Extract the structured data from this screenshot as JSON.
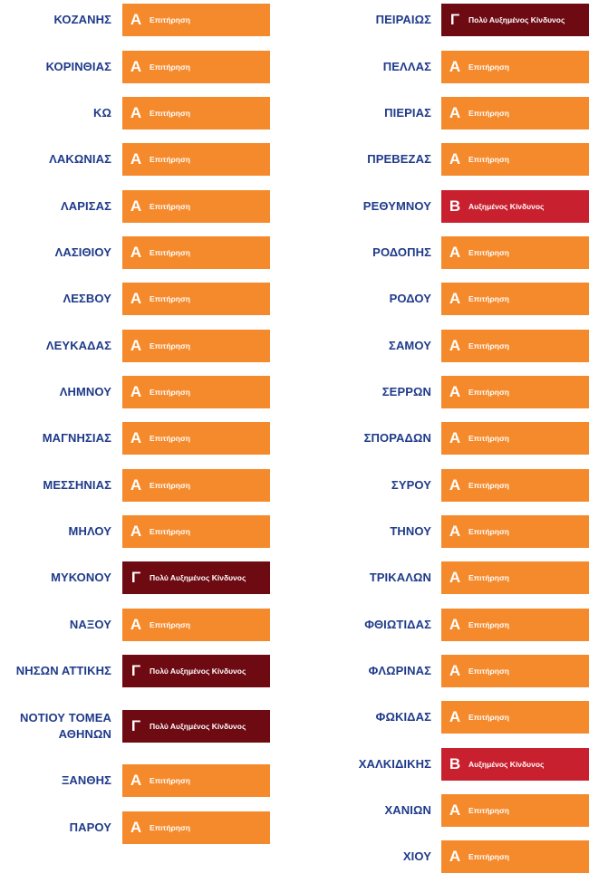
{
  "levels": {
    "A": {
      "letter": "Α",
      "label": "Επιτήρηση",
      "color": "#f58a2c"
    },
    "B": {
      "letter": "Β",
      "label": "Αυξημένος Κίνδυνος",
      "color": "#c9202f"
    },
    "C": {
      "letter": "Γ",
      "label": "Πολύ Αυξημένος Κίνδυνος",
      "color": "#6d0a12"
    }
  },
  "left_column": [
    {
      "name": "ΚΟΖΑΝΗΣ",
      "level": "A"
    },
    {
      "name": "ΚΟΡΙΝΘΙΑΣ",
      "level": "A"
    },
    {
      "name": "ΚΩ",
      "level": "A"
    },
    {
      "name": "ΛΑΚΩΝΙΑΣ",
      "level": "A"
    },
    {
      "name": "ΛΑΡΙΣΑΣ",
      "level": "A"
    },
    {
      "name": "ΛΑΣΙΘΙΟΥ",
      "level": "A"
    },
    {
      "name": "ΛΕΣΒΟΥ",
      "level": "A"
    },
    {
      "name": "ΛΕΥΚΑΔΑΣ",
      "level": "A"
    },
    {
      "name": "ΛΗΜΝΟΥ",
      "level": "A"
    },
    {
      "name": "ΜΑΓΝΗΣΙΑΣ",
      "level": "A"
    },
    {
      "name": "ΜΕΣΣΗΝΙΑΣ",
      "level": "A"
    },
    {
      "name": "ΜΗΛΟΥ",
      "level": "A"
    },
    {
      "name": "ΜΥΚΟΝΟΥ",
      "level": "C"
    },
    {
      "name": "ΝΑΞΟΥ",
      "level": "A"
    },
    {
      "name": "ΝΗΣΩΝ ΑΤΤΙΚΗΣ",
      "level": "C"
    },
    {
      "name": "ΝΟΤΙΟΥ ΤΟΜΕΑ\nΑΘΗΝΩΝ",
      "level": "C"
    },
    {
      "name": "ΞΑΝΘΗΣ",
      "level": "A"
    },
    {
      "name": "ΠΑΡΟΥ",
      "level": "A"
    }
  ],
  "right_column": [
    {
      "name": "ΠΕΙΡΑΙΩΣ",
      "level": "C"
    },
    {
      "name": "ΠΕΛΛΑΣ",
      "level": "A"
    },
    {
      "name": "ΠΙΕΡΙΑΣ",
      "level": "A"
    },
    {
      "name": "ΠΡΕΒΕΖΑΣ",
      "level": "A"
    },
    {
      "name": "ΡΕΘΥΜΝΟΥ",
      "level": "B"
    },
    {
      "name": "ΡΟΔΟΠΗΣ",
      "level": "A"
    },
    {
      "name": "ΡΟΔΟΥ",
      "level": "A"
    },
    {
      "name": "ΣΑΜΟΥ",
      "level": "A"
    },
    {
      "name": "ΣΕΡΡΩΝ",
      "level": "A"
    },
    {
      "name": "ΣΠΟΡΑΔΩΝ",
      "level": "A"
    },
    {
      "name": "ΣΥΡΟΥ",
      "level": "A"
    },
    {
      "name": "ΤΗΝΟΥ",
      "level": "A"
    },
    {
      "name": "ΤΡΙΚΑΛΩΝ",
      "level": "A"
    },
    {
      "name": "ΦΘΙΩΤΙΔΑΣ",
      "level": "A"
    },
    {
      "name": "ΦΛΩΡΙΝΑΣ",
      "level": "A"
    },
    {
      "name": "ΦΩΚΙΔΑΣ",
      "level": "A"
    },
    {
      "name": "ΧΑΛΚΙΔΙΚΗΣ",
      "level": "B"
    },
    {
      "name": "ΧΑΝΙΩΝ",
      "level": "A"
    },
    {
      "name": "ΧΙΟΥ",
      "level": "A"
    }
  ]
}
